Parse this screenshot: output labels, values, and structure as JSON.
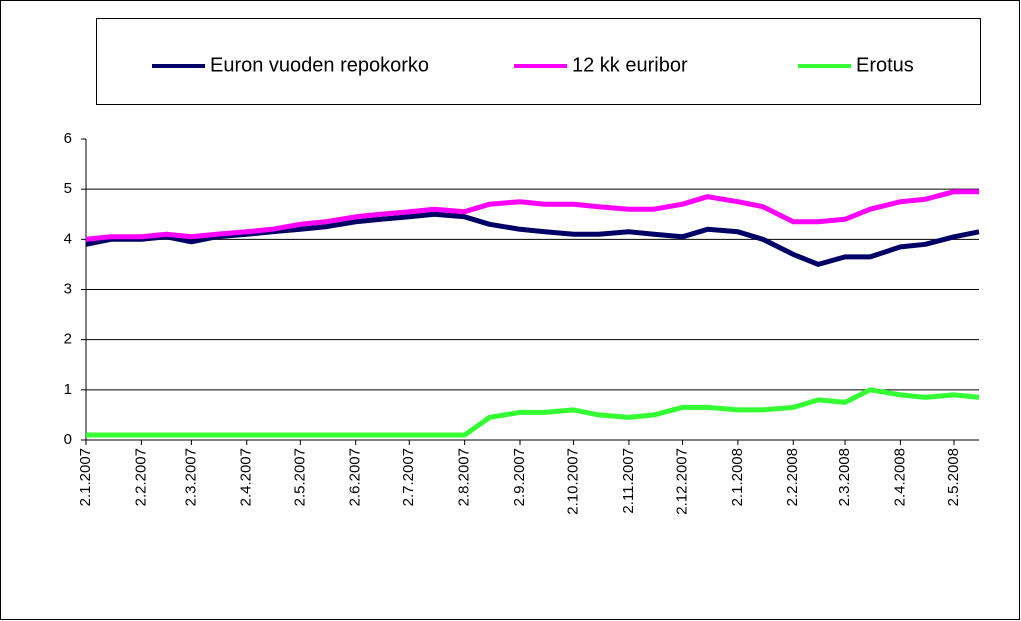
{
  "chart_data": {
    "type": "line",
    "x": [
      "2.1.2007",
      "16.1.2007",
      "2.2.2007",
      "16.2.2007",
      "2.3.2007",
      "16.3.2007",
      "2.4.2007",
      "16.4.2007",
      "2.5.2007",
      "16.5.2007",
      "2.6.2007",
      "16.6.2007",
      "2.7.2007",
      "16.7.2007",
      "2.8.2007",
      "16.8.2007",
      "2.9.2007",
      "16.9.2007",
      "2.10.2007",
      "16.10.2007",
      "2.11.2007",
      "16.11.2007",
      "2.12.2007",
      "16.12.2007",
      "2.1.2008",
      "16.1.2008",
      "2.2.2008",
      "16.2.2008",
      "2.3.2008",
      "16.3.2008",
      "2.4.2008",
      "16.4.2008",
      "2.5.2008",
      "16.5.2008"
    ],
    "series": [
      {
        "name": "Euron vuoden repokorko",
        "color": "#000066",
        "values": [
          3.9,
          4.0,
          4.0,
          4.05,
          3.95,
          4.05,
          4.1,
          4.15,
          4.2,
          4.25,
          4.35,
          4.4,
          4.45,
          4.5,
          4.45,
          4.3,
          4.2,
          4.15,
          4.1,
          4.1,
          4.15,
          4.1,
          4.05,
          4.2,
          4.15,
          4.0,
          3.7,
          3.5,
          3.65,
          3.65,
          3.85,
          3.9,
          4.05,
          4.15
        ]
      },
      {
        "name": "12 kk euribor",
        "color": "#ff00ff",
        "values": [
          4.0,
          4.05,
          4.05,
          4.1,
          4.05,
          4.1,
          4.15,
          4.2,
          4.3,
          4.35,
          4.45,
          4.5,
          4.55,
          4.6,
          4.55,
          4.7,
          4.75,
          4.7,
          4.7,
          4.65,
          4.6,
          4.6,
          4.7,
          4.85,
          4.75,
          4.65,
          4.35,
          4.35,
          4.4,
          4.6,
          4.75,
          4.8,
          4.95,
          4.95
        ]
      },
      {
        "name": "Erotus",
        "color": "#33ff33",
        "values": [
          0.1,
          0.1,
          0.1,
          0.1,
          0.1,
          0.1,
          0.1,
          0.1,
          0.1,
          0.1,
          0.1,
          0.1,
          0.1,
          0.1,
          0.1,
          0.45,
          0.55,
          0.55,
          0.6,
          0.5,
          0.45,
          0.5,
          0.65,
          0.65,
          0.6,
          0.6,
          0.65,
          0.8,
          0.75,
          1.0,
          0.9,
          0.85,
          0.9,
          0.85
        ]
      }
    ],
    "xlim": [
      "2.1.2007",
      "16.5.2008"
    ],
    "xticks": [
      "2.1.2007",
      "2.2.2007",
      "2.3.2007",
      "2.4.2007",
      "2.5.2007",
      "2.6.2007",
      "2.7.2007",
      "2.8.2007",
      "2.9.2007",
      "2.10.2007",
      "2.11.2007",
      "2.12.2007",
      "2.1.2008",
      "2.2.2008",
      "2.3.2008",
      "2.4.2008",
      "2.5.2008"
    ],
    "ylim": [
      0,
      6
    ],
    "yticks": [
      0,
      1,
      2,
      3,
      4,
      5,
      6
    ],
    "grid": true,
    "legend": "top"
  }
}
